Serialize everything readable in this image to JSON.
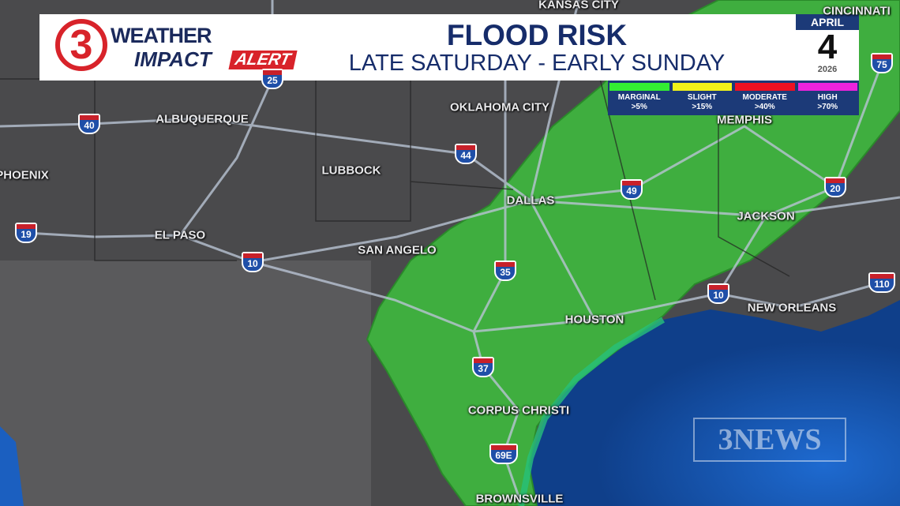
{
  "header": {
    "brand_number": "3",
    "brand_line1": "WEATHER",
    "brand_line2": "IMPACT",
    "brand_alert": "ALERT",
    "title": "FLOOD RISK",
    "subtitle": "LATE SATURDAY - EARLY SUNDAY"
  },
  "date": {
    "month": "APRIL",
    "day": "4",
    "year": "2026"
  },
  "legend": [
    {
      "label": "MARGINAL",
      "value": ">5%",
      "color": "#33ee33"
    },
    {
      "label": "SLIGHT",
      "value": ">15%",
      "color": "#f2f21a"
    },
    {
      "label": "MODERATE",
      "value": ">40%",
      "color": "#ee1122"
    },
    {
      "label": "HIGH",
      "value": ">70%",
      "color": "#ee22dd"
    }
  ],
  "cities": [
    "KANSAS CITY",
    "CINCINNATI",
    "OKLAHOMA CITY",
    "MEMPHIS",
    "ALBUQUERQUE",
    "LUBBOCK",
    "PHOENIX",
    "DALLAS",
    "JACKSON",
    "EL PASO",
    "SAN ANGELO",
    "HOUSTON",
    "NEW ORLEANS",
    "CORPUS CHRISTI",
    "BROWNSVILLE"
  ],
  "interstates": [
    "25",
    "40",
    "44",
    "19",
    "10",
    "35",
    "49",
    "20",
    "75",
    "10",
    "110",
    "37",
    "69E"
  ],
  "watermark": "3NEWS",
  "colors": {
    "land": "#4a4a4c",
    "marginal_area": "#3fae3f",
    "gulf": "#1b5fc0"
  }
}
